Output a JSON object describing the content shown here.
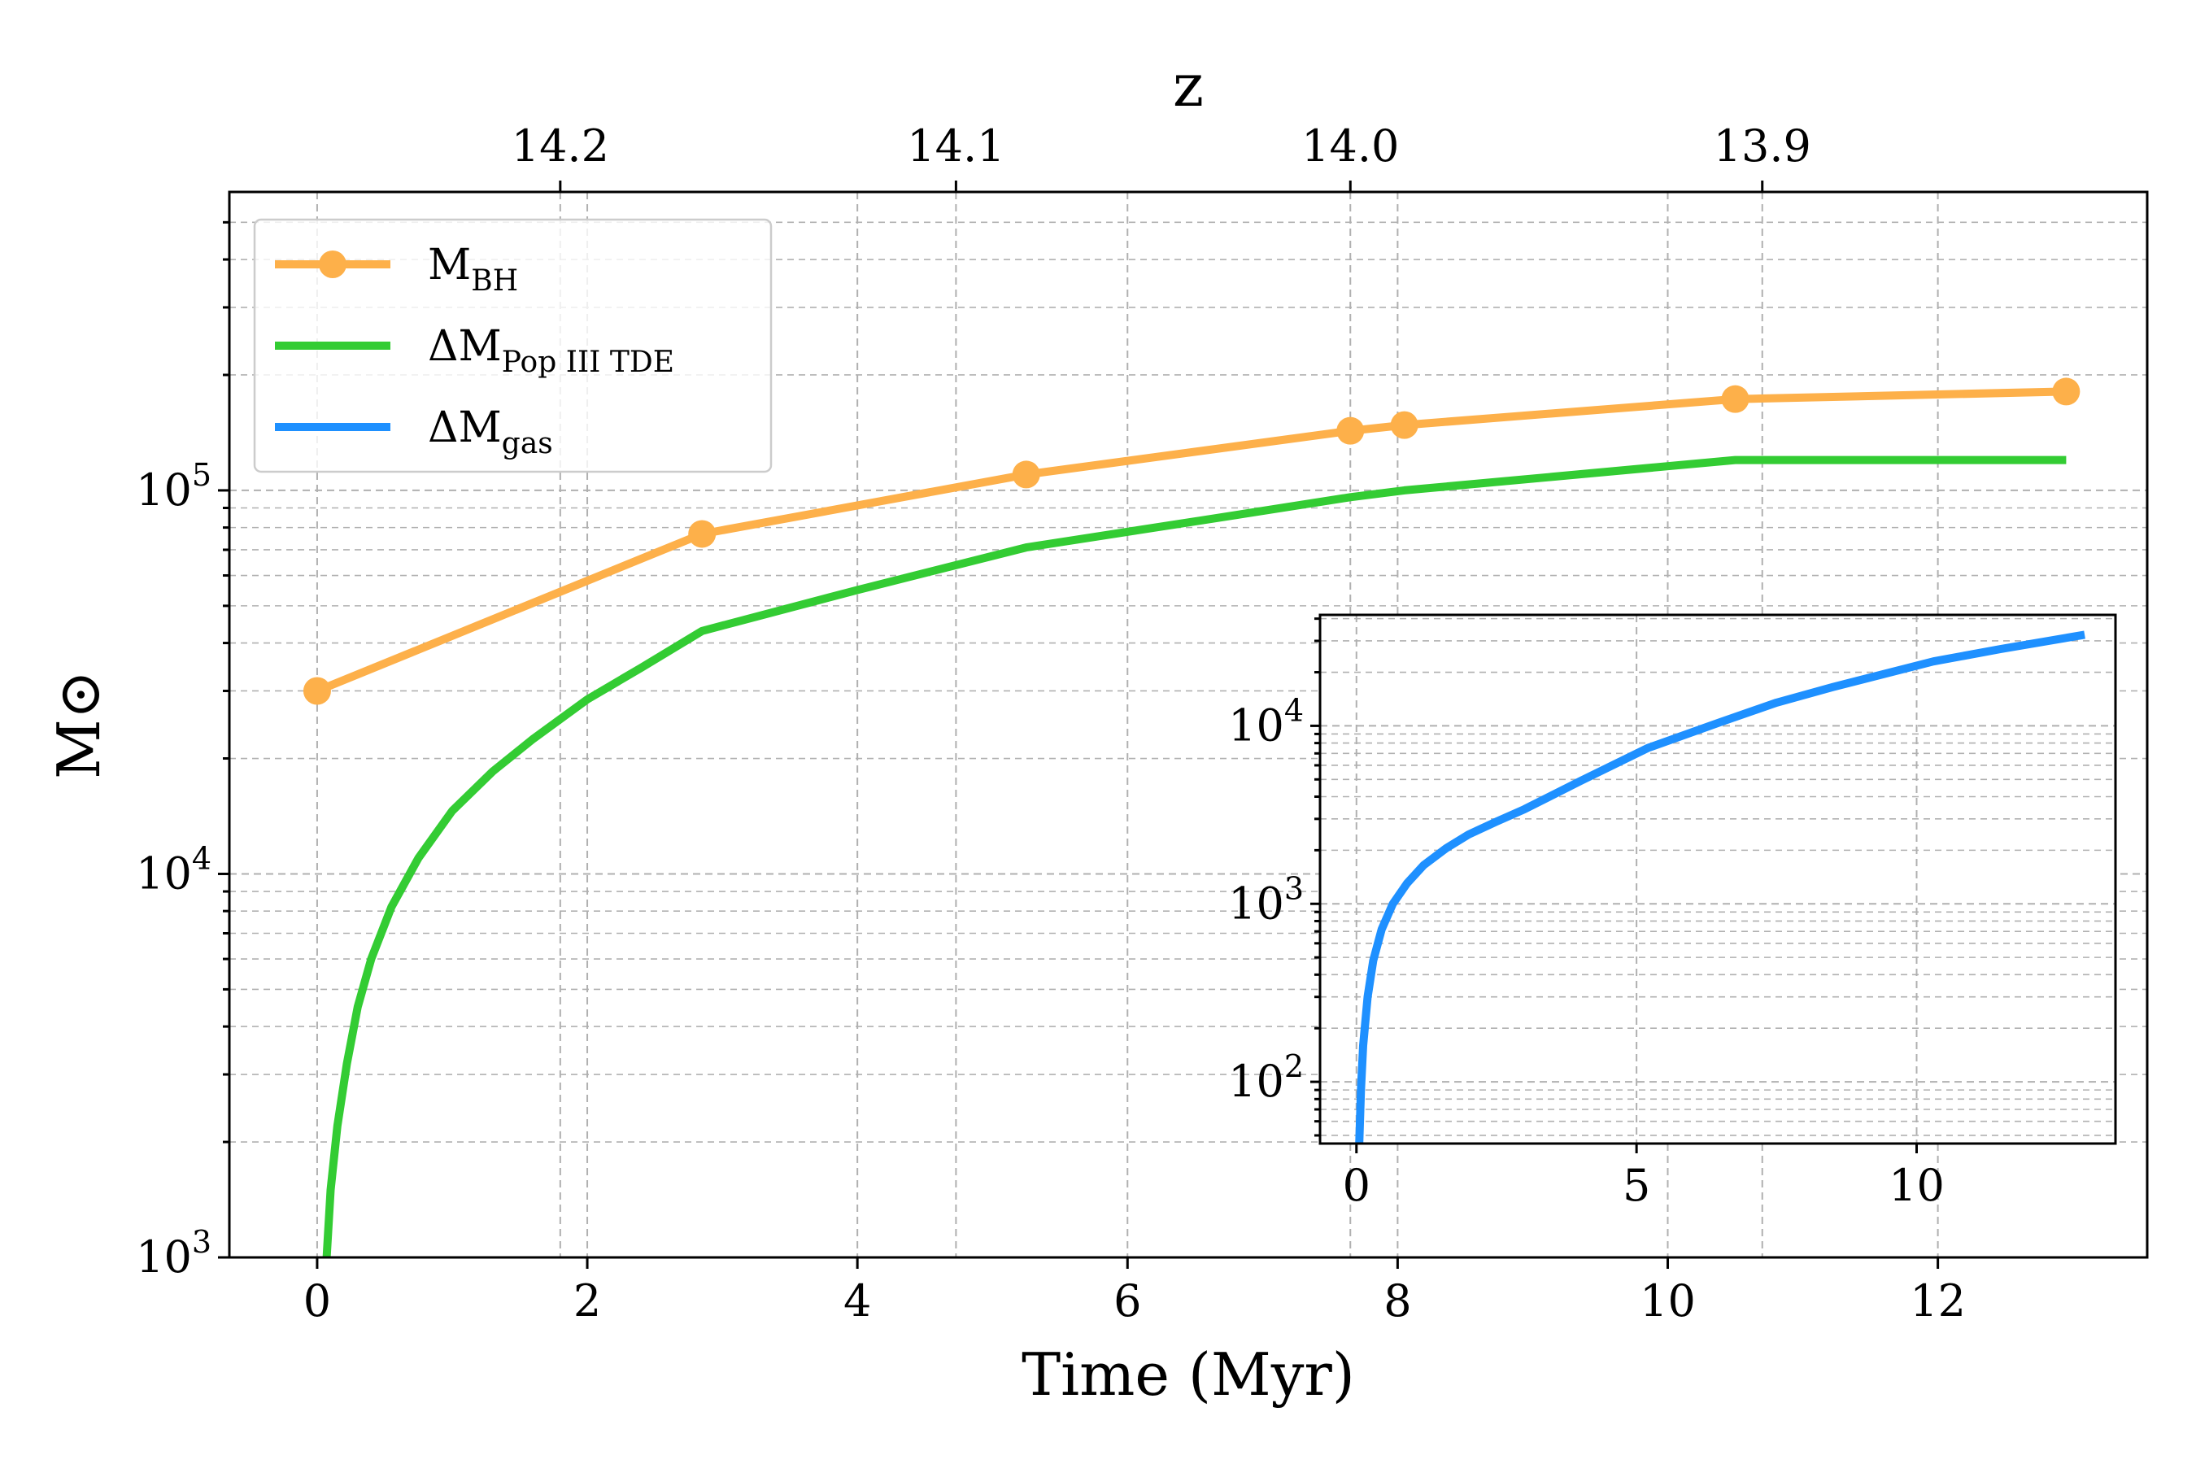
{
  "chart_data": {
    "type": "line",
    "xlabel": "Time (Myr)",
    "ylabel": "M⊙",
    "x_ticks": [
      0,
      2,
      4,
      6,
      8,
      10,
      12
    ],
    "xlim": [
      -0.65,
      13.55
    ],
    "ylim": [
      1000,
      600000
    ],
    "yscale": "log",
    "y_ticks": [
      {
        "value": 1000,
        "base": "10",
        "exp": "3"
      },
      {
        "value": 10000,
        "base": "10",
        "exp": "4"
      },
      {
        "value": 100000,
        "base": "10",
        "exp": "5"
      }
    ],
    "top_axis": {
      "label": "z",
      "ticks": [
        {
          "label": "14.2",
          "time": 1.8
        },
        {
          "label": "14.1",
          "time": 4.73
        },
        {
          "label": "14.0",
          "time": 7.65
        },
        {
          "label": "13.9",
          "time": 10.7
        }
      ]
    },
    "grid": true,
    "legend_position": "top-left",
    "series": [
      {
        "name": "M",
        "name_sub": "BH",
        "color": "#fdb04a",
        "markers": true,
        "points": [
          {
            "x": 0.0,
            "y": 30000
          },
          {
            "x": 2.85,
            "y": 77000
          },
          {
            "x": 5.25,
            "y": 110000
          },
          {
            "x": 7.65,
            "y": 143000
          },
          {
            "x": 8.05,
            "y": 148000
          },
          {
            "x": 10.5,
            "y": 173000
          },
          {
            "x": 12.95,
            "y": 181000
          }
        ]
      },
      {
        "name": "ΔM",
        "name_sub": "Pop III TDE",
        "color": "#33cc33",
        "markers": false,
        "points": [
          {
            "x": 0.07,
            "y": 1000
          },
          {
            "x": 0.1,
            "y": 1500
          },
          {
            "x": 0.15,
            "y": 2200
          },
          {
            "x": 0.22,
            "y": 3200
          },
          {
            "x": 0.3,
            "y": 4500
          },
          {
            "x": 0.4,
            "y": 6000
          },
          {
            "x": 0.55,
            "y": 8200
          },
          {
            "x": 0.75,
            "y": 11000
          },
          {
            "x": 1.0,
            "y": 14600
          },
          {
            "x": 1.3,
            "y": 18500
          },
          {
            "x": 1.6,
            "y": 22500
          },
          {
            "x": 2.0,
            "y": 28500
          },
          {
            "x": 2.4,
            "y": 34500
          },
          {
            "x": 2.85,
            "y": 43000
          },
          {
            "x": 4.0,
            "y": 55000
          },
          {
            "x": 5.25,
            "y": 71000
          },
          {
            "x": 6.5,
            "y": 83000
          },
          {
            "x": 7.65,
            "y": 96000
          },
          {
            "x": 8.05,
            "y": 100000
          },
          {
            "x": 10.5,
            "y": 120000
          },
          {
            "x": 12.95,
            "y": 120000
          }
        ]
      },
      {
        "name": "ΔM",
        "name_sub": "gas",
        "color": "#1e90ff",
        "markers": false,
        "inset_only": true
      }
    ],
    "inset": {
      "xlim": [
        -0.65,
        13.55
      ],
      "ylim": [
        45,
        42000
      ],
      "yscale": "log",
      "x_ticks": [
        0,
        5,
        10
      ],
      "y_ticks": [
        {
          "value": 100,
          "base": "10",
          "exp": "2"
        },
        {
          "value": 1000,
          "base": "10",
          "exp": "3"
        },
        {
          "value": 10000,
          "base": "10",
          "exp": "4"
        }
      ],
      "series": [
        {
          "name": "ΔM",
          "name_sub": "gas",
          "color": "#1e90ff",
          "points": [
            {
              "x": 0.05,
              "y": 45
            },
            {
              "x": 0.08,
              "y": 90
            },
            {
              "x": 0.12,
              "y": 160
            },
            {
              "x": 0.2,
              "y": 300
            },
            {
              "x": 0.3,
              "y": 480
            },
            {
              "x": 0.45,
              "y": 720
            },
            {
              "x": 0.65,
              "y": 1000
            },
            {
              "x": 0.9,
              "y": 1300
            },
            {
              "x": 1.2,
              "y": 1650
            },
            {
              "x": 1.6,
              "y": 2050
            },
            {
              "x": 2.0,
              "y": 2450
            },
            {
              "x": 2.5,
              "y": 2900
            },
            {
              "x": 3.0,
              "y": 3400
            },
            {
              "x": 4.0,
              "y": 4900
            },
            {
              "x": 5.2,
              "y": 7500
            },
            {
              "x": 6.5,
              "y": 10500
            },
            {
              "x": 7.5,
              "y": 13500
            },
            {
              "x": 8.5,
              "y": 16500
            },
            {
              "x": 10.3,
              "y": 23000
            },
            {
              "x": 11.5,
              "y": 27000
            },
            {
              "x": 13.0,
              "y": 32500
            }
          ]
        }
      ]
    }
  }
}
